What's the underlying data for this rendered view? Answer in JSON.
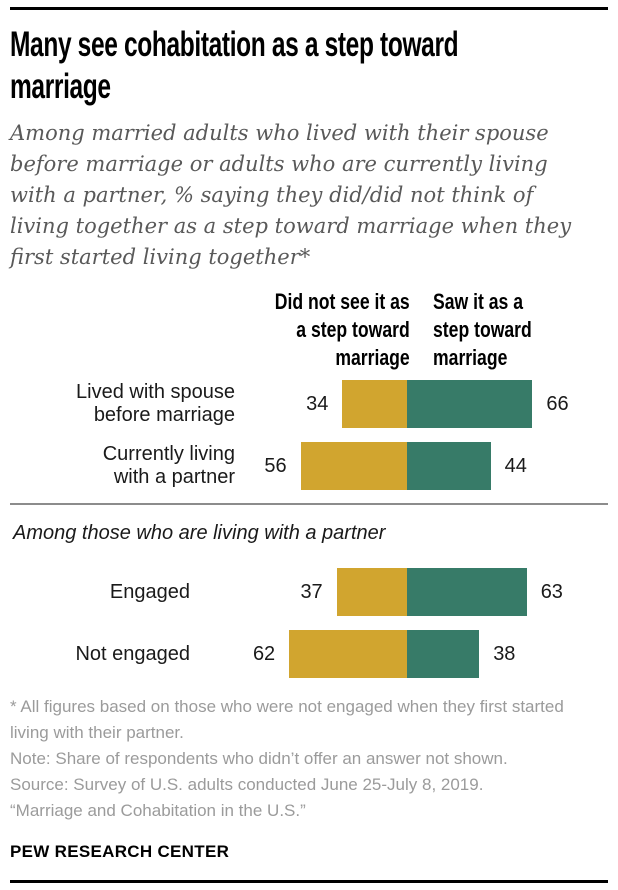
{
  "header": {
    "title_line1": "Many see cohabitation as a step toward",
    "title_line2": "marriage",
    "subtitle": "Among married adults who lived with their spouse before marriage or adults who are currently living with a partner, % saying they did/did not think of living together as a step toward marriage when they first started living together*"
  },
  "chart_data": {
    "type": "bar",
    "variant": "horizontal-diverging-paired",
    "title": "Many see cohabitation as a step toward marriage",
    "unit": "%",
    "axis_hidden": true,
    "xlim": [
      -100,
      100
    ],
    "colors": {
      "did_not_see": "#d1a52f",
      "saw": "#377b68"
    },
    "legend": {
      "negative": "Did not see it as a step toward marriage",
      "positive": "Saw it as a step toward marriage"
    },
    "legend_lines": {
      "negative": [
        "Did not see it as",
        "a step toward",
        "marriage"
      ],
      "positive": [
        "Saw it as a",
        "step toward",
        "marriage"
      ]
    },
    "groups": [
      {
        "section_label": "",
        "rows": [
          {
            "category": "Lived with spouse before marriage",
            "category_lines": [
              "Lived with spouse",
              "before marriage"
            ],
            "did_not_see": 34,
            "saw": 66
          },
          {
            "category": "Currently living with a partner",
            "category_lines": [
              "Currently living",
              "with a partner"
            ],
            "did_not_see": 56,
            "saw": 44
          }
        ]
      },
      {
        "section_label": "Among those who are living with a partner",
        "rows": [
          {
            "category": "Engaged",
            "category_lines": [
              "Engaged"
            ],
            "did_not_see": 37,
            "saw": 63
          },
          {
            "category": "Not engaged",
            "category_lines": [
              "Not engaged"
            ],
            "did_not_see": 62,
            "saw": 38
          }
        ]
      }
    ]
  },
  "notes": {
    "footnote": "* All figures based on those who were not engaged when they first started living with their partner.",
    "note": "Note: Share of respondents who didn’t offer an answer not shown.",
    "source_line1": "Source: Survey of U.S. adults conducted June 25-July 8, 2019.",
    "source_line2": "“Marriage and Cohabitation in the U.S.”"
  },
  "footer": {
    "brand": "PEW RESEARCH CENTER"
  }
}
